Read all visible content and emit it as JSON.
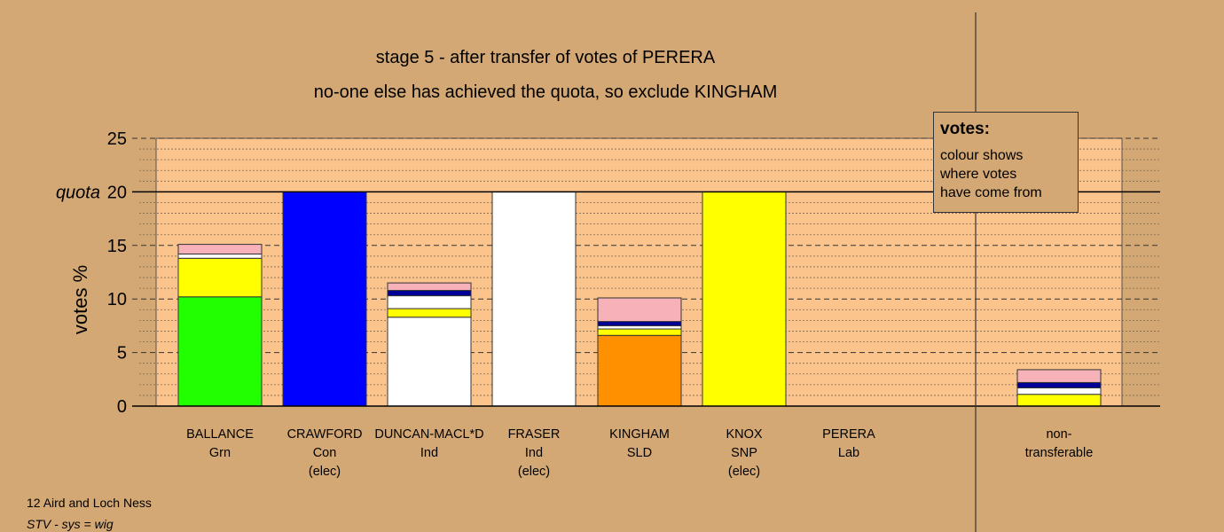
{
  "title_line1": "stage 5 - after transfer of votes of PERERA",
  "title_line2": "no-one else has achieved the quota, so exclude KINGHAM",
  "legend": {
    "title": "votes:",
    "lines": [
      "colour shows",
      "where votes",
      "have come from"
    ]
  },
  "footer": {
    "ward": "12 Aird and Loch Ness",
    "system": "STV - sys = wig"
  },
  "chart_data": {
    "type": "bar",
    "stacked": true,
    "ylabel": "votes %",
    "ylim": [
      0,
      25
    ],
    "yticks": [
      0,
      5,
      10,
      15,
      20,
      25
    ],
    "quota": 20,
    "quota_label": "quota",
    "grid": true,
    "categories": [
      {
        "name": "BALLANCE",
        "party": "Grn",
        "status": ""
      },
      {
        "name": "CRAWFORD",
        "party": "Con",
        "status": "(elec)"
      },
      {
        "name": "DUNCAN-MACL*D",
        "party": "Ind",
        "status": ""
      },
      {
        "name": "FRASER",
        "party": "Ind",
        "status": "(elec)"
      },
      {
        "name": "KINGHAM",
        "party": "SLD",
        "status": ""
      },
      {
        "name": "KNOX",
        "party": "SNP",
        "status": "(elec)"
      },
      {
        "name": "PERERA",
        "party": "Lab",
        "status": ""
      },
      {
        "name": "non-",
        "party": "transferable",
        "status": ""
      }
    ],
    "stacks": [
      [
        {
          "value": 10.2,
          "color": "#22ff00"
        },
        {
          "value": 3.6,
          "color": "#ffff00"
        },
        {
          "value": 0.4,
          "color": "#ffffff"
        },
        {
          "value": 0.9,
          "color": "#f7b1b9"
        }
      ],
      [
        {
          "value": 20.0,
          "color": "#0000ff"
        }
      ],
      [
        {
          "value": 8.3,
          "color": "#ffffff"
        },
        {
          "value": 0.8,
          "color": "#ffff00"
        },
        {
          "value": 1.2,
          "color": "#ffffff"
        },
        {
          "value": 0.5,
          "color": "#000099"
        },
        {
          "value": 0.7,
          "color": "#f7b1b9"
        }
      ],
      [
        {
          "value": 20.0,
          "color": "#ffffff"
        }
      ],
      [
        {
          "value": 6.6,
          "color": "#ff9100"
        },
        {
          "value": 0.6,
          "color": "#ffff00"
        },
        {
          "value": 0.3,
          "color": "#ffffff"
        },
        {
          "value": 0.4,
          "color": "#000099"
        },
        {
          "value": 2.2,
          "color": "#f7b1b9"
        }
      ],
      [
        {
          "value": 20.0,
          "color": "#ffff00"
        }
      ],
      [],
      [
        {
          "value": 1.1,
          "color": "#ffff00"
        },
        {
          "value": 0.6,
          "color": "#ffffff"
        },
        {
          "value": 0.5,
          "color": "#000099"
        },
        {
          "value": 1.2,
          "color": "#f7b1b9"
        }
      ]
    ],
    "colors": {
      "plot_background": "#fbc48c",
      "page_background": "#d4a874",
      "Grn": "#22ff00",
      "Con": "#0000ff",
      "Ind": "#ffffff",
      "SLD": "#ff9100",
      "SNP": "#ffff00",
      "Lab_pink": "#f7b1b9",
      "navy": "#000099"
    }
  }
}
